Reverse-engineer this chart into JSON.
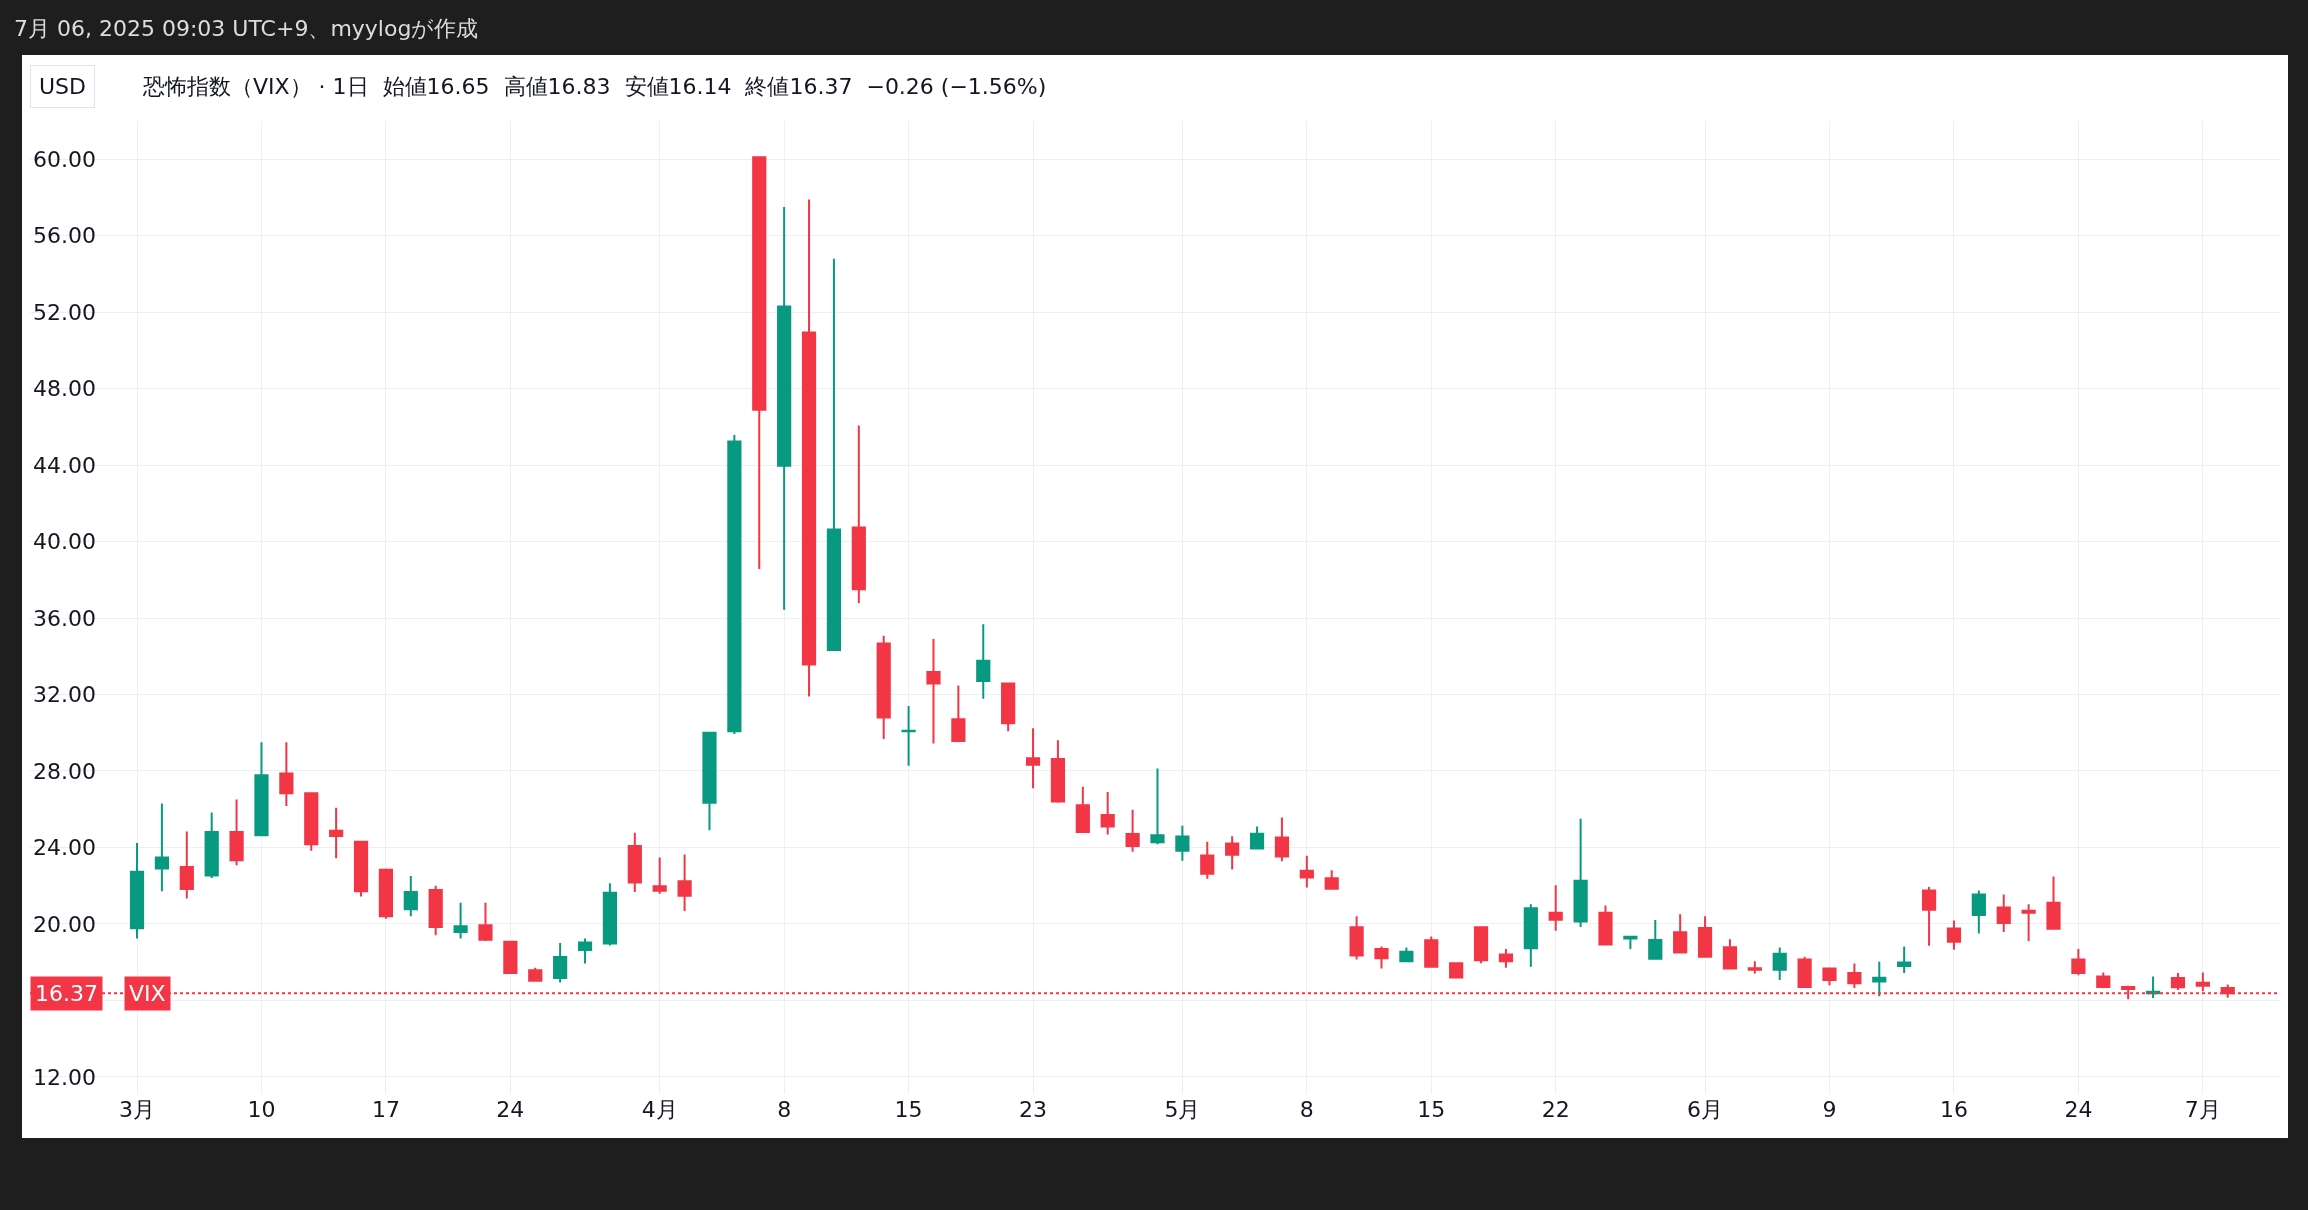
{
  "chart_data": {
    "type": "candlestick",
    "title": "7月 06, 2025 09:03 UTC+9、myylogが作成",
    "subtitle": "恐怖指数（VIX） · 1日  始値16.65  高値16.83  安値16.14  終値16.37  −0.26 (−1.56%)",
    "annotations": [
      "USD",
      {
        "text": "16.37",
        "y": 16.37
      }
    ],
    "categories": [
      "3月",
      null,
      null,
      null,
      null,
      "10",
      null,
      null,
      null,
      null,
      "17",
      null,
      null,
      null,
      null,
      "24",
      null,
      null,
      null,
      null,
      null,
      "4月",
      null,
      null,
      null,
      null,
      "8",
      null,
      null,
      null,
      null,
      "15",
      null,
      null,
      null,
      null,
      "23",
      null,
      null,
      null,
      null,
      null,
      "5月",
      null,
      null,
      null,
      null,
      "8",
      null,
      null,
      null,
      null,
      "15",
      null,
      null,
      null,
      null,
      "22",
      null,
      null,
      null,
      null,
      null,
      "6月",
      null,
      null,
      null,
      null,
      "9",
      null,
      null,
      null,
      null,
      "16",
      null,
      null,
      null,
      null,
      "24",
      null,
      null,
      null,
      null,
      "7月",
      null
    ],
    "ohlc": [
      [
        19.77,
        24.23,
        19.23,
        22.73
      ],
      [
        22.9,
        26.3,
        21.7,
        23.47
      ],
      [
        22.97,
        24.83,
        21.33,
        21.83
      ],
      [
        22.53,
        25.83,
        22.4,
        24.8
      ],
      [
        24.8,
        26.5,
        23.07,
        23.33
      ],
      [
        24.63,
        29.5,
        24.6,
        27.77
      ],
      [
        27.87,
        29.5,
        26.17,
        26.83
      ],
      [
        26.83,
        26.83,
        23.83,
        24.17
      ],
      [
        24.87,
        26.07,
        23.43,
        24.6
      ],
      [
        24.3,
        24.3,
        21.43,
        21.7
      ],
      [
        22.83,
        22.9,
        20.27,
        20.4
      ],
      [
        20.77,
        22.5,
        20.4,
        21.67
      ],
      [
        21.77,
        22.0,
        19.4,
        19.83
      ],
      [
        19.57,
        21.1,
        19.23,
        19.87
      ],
      [
        19.93,
        21.1,
        19.1,
        19.17
      ],
      [
        19.07,
        19.07,
        17.43,
        17.43
      ],
      [
        17.57,
        17.7,
        16.97,
        17.03
      ],
      [
        17.17,
        19.0,
        16.93,
        18.27
      ],
      [
        18.63,
        19.23,
        17.93,
        19.03
      ],
      [
        18.97,
        22.13,
        18.87,
        21.63
      ],
      [
        24.07,
        24.77,
        21.67,
        22.17
      ],
      [
        21.97,
        23.47,
        21.57,
        21.73
      ],
      [
        22.23,
        23.63,
        20.67,
        21.47
      ],
      [
        26.33,
        30.0,
        24.9,
        30.0
      ],
      [
        30.07,
        45.57,
        29.93,
        45.23
      ],
      [
        60.1,
        60.1,
        38.57,
        46.9
      ],
      [
        43.97,
        57.5,
        36.43,
        52.3
      ],
      [
        50.93,
        57.9,
        31.9,
        33.57
      ],
      [
        34.33,
        54.8,
        34.33,
        40.63
      ],
      [
        40.73,
        46.07,
        36.77,
        37.5
      ],
      [
        34.67,
        35.07,
        29.67,
        30.8
      ],
      [
        30.07,
        31.4,
        28.27,
        30.1
      ],
      [
        33.17,
        34.9,
        29.43,
        32.57
      ],
      [
        30.7,
        32.47,
        29.5,
        29.57
      ],
      [
        32.7,
        35.67,
        31.77,
        33.77
      ],
      [
        32.57,
        32.63,
        30.07,
        30.5
      ],
      [
        28.67,
        30.23,
        27.1,
        28.33
      ],
      [
        28.63,
        29.6,
        26.33,
        26.4
      ],
      [
        26.2,
        27.17,
        24.8,
        24.8
      ],
      [
        25.7,
        26.9,
        24.67,
        25.1
      ],
      [
        24.7,
        25.97,
        23.77,
        24.07
      ],
      [
        24.27,
        28.13,
        24.17,
        24.63
      ],
      [
        23.83,
        25.13,
        23.3,
        24.57
      ],
      [
        23.58,
        24.3,
        22.36,
        22.62
      ],
      [
        24.2,
        24.58,
        22.84,
        23.62
      ],
      [
        23.94,
        25.1,
        23.94,
        24.72
      ],
      [
        24.52,
        25.56,
        23.28,
        23.52
      ],
      [
        22.78,
        23.56,
        21.9,
        22.42
      ],
      [
        22.38,
        22.8,
        21.84,
        21.84
      ],
      [
        19.82,
        20.4,
        18.14,
        18.34
      ],
      [
        18.68,
        18.82,
        17.66,
        18.2
      ],
      [
        18.04,
        18.76,
        18.04,
        18.54
      ],
      [
        19.14,
        19.34,
        17.76,
        17.76
      ],
      [
        17.94,
        17.94,
        17.14,
        17.2
      ],
      [
        19.82,
        19.86,
        17.94,
        18.1
      ],
      [
        18.4,
        18.68,
        17.7,
        18.04
      ],
      [
        18.72,
        21.02,
        17.76,
        20.82
      ],
      [
        20.58,
        22.02,
        19.64,
        20.22
      ],
      [
        20.12,
        25.5,
        19.84,
        22.26
      ],
      [
        20.58,
        20.96,
        18.92,
        18.92
      ],
      [
        19.24,
        19.38,
        18.68,
        19.32
      ],
      [
        18.18,
        20.2,
        18.12,
        19.16
      ],
      [
        19.56,
        20.5,
        18.5,
        18.5
      ],
      [
        19.78,
        20.4,
        18.28,
        18.28
      ],
      [
        18.78,
        19.2,
        17.66,
        17.66
      ],
      [
        17.68,
        18.04,
        17.4,
        17.6
      ],
      [
        17.6,
        18.77,
        17.07,
        18.44
      ],
      [
        18.13,
        18.28,
        16.67,
        16.7
      ],
      [
        17.67,
        17.67,
        16.79,
        17.07
      ],
      [
        17.43,
        17.93,
        16.65,
        16.9
      ],
      [
        16.98,
        18.02,
        16.21,
        17.18
      ],
      [
        17.8,
        18.81,
        17.43,
        17.98
      ],
      [
        21.75,
        21.93,
        18.86,
        20.74
      ],
      [
        19.76,
        20.18,
        18.64,
        19.06
      ],
      [
        20.47,
        21.75,
        19.5,
        21.53
      ],
      [
        20.85,
        21.53,
        19.57,
        20.05
      ],
      [
        20.69,
        21.02,
        19.1,
        20.58
      ],
      [
        21.11,
        22.48,
        19.74,
        19.74
      ],
      [
        18.13,
        18.68,
        17.31,
        17.43
      ],
      [
        17.25,
        17.45,
        16.63,
        16.7
      ],
      [
        16.7,
        16.76,
        16.06,
        16.59
      ],
      [
        16.37,
        17.25,
        16.12,
        16.45
      ],
      [
        17.17,
        17.43,
        16.54,
        16.69
      ],
      [
        16.92,
        17.45,
        16.48,
        16.76
      ],
      [
        16.65,
        16.83,
        16.14,
        16.37
      ]
    ],
    "colors": [
      "#089981",
      "#089981",
      "#f23645",
      "#089981",
      "#f23645",
      "#089981",
      "#f23645",
      "#f23645",
      "#f23645",
      "#f23645",
      "#f23645",
      "#089981",
      "#f23645",
      "#089981",
      "#f23645",
      "#f23645",
      "#f23645",
      "#089981",
      "#089981",
      "#089981",
      "#f23645",
      "#f23645",
      "#f23645",
      "#089981",
      "#089981",
      "#f23645",
      "#089981",
      "#f23645",
      "#089981",
      "#f23645",
      "#f23645",
      "#089981",
      "#f23645",
      "#f23645",
      "#089981",
      "#f23645",
      "#f23645",
      "#f23645",
      "#f23645",
      "#f23645",
      "#f23645",
      "#089981",
      "#089981",
      "#f23645",
      "#f23645",
      "#089981",
      "#f23645",
      "#f23645",
      "#f23645",
      "#f23645",
      "#f23645",
      "#089981",
      "#f23645",
      "#f23645",
      "#f23645",
      "#f23645",
      "#089981",
      "#f23645",
      "#089981",
      "#f23645",
      "#089981",
      "#089981",
      "#f23645",
      "#f23645",
      "#f23645",
      "#f23645",
      "#089981",
      "#f23645",
      "#f23645",
      "#f23645",
      "#089981",
      "#089981",
      "#f23645",
      "#f23645",
      "#089981",
      "#f23645",
      "#f23645",
      "#f23645",
      "#f23645",
      "#f23645",
      "#f23645",
      "#089981",
      "#f23645",
      "#f23645",
      "#f23645"
    ],
    "ylim": [
      11.1,
      62
    ],
    "yticks": [
      {
        "value": 12,
        "label": "12.00"
      },
      {
        "value": 16,
        "label": null
      },
      {
        "value": 20,
        "label": "20.00"
      },
      {
        "value": 24,
        "label": "24.00"
      },
      {
        "value": 28,
        "label": "28.00"
      },
      {
        "value": 32,
        "label": "32.00"
      },
      {
        "value": 36,
        "label": "36.00"
      },
      {
        "value": 40,
        "label": "40.00"
      },
      {
        "value": 44,
        "label": "44.00"
      },
      {
        "value": 48,
        "label": "48.00"
      },
      {
        "value": 52,
        "label": "52.00"
      },
      {
        "value": 56,
        "label": "56.00"
      },
      {
        "value": 60,
        "label": "60.00"
      }
    ],
    "ref_lines": [
      {
        "axis": "y",
        "value": 16.37,
        "label": "VIX",
        "color": "#f23645",
        "line_style": "dotted"
      }
    ],
    "grid": true
  }
}
